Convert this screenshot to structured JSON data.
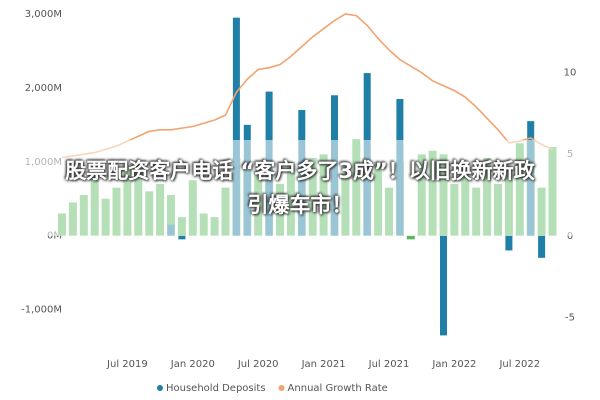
{
  "chart_data": {
    "type": "bar",
    "categories": [
      null,
      null,
      null,
      null,
      null,
      null,
      "Jul 2019",
      null,
      null,
      null,
      null,
      null,
      "Jan 2020",
      null,
      null,
      null,
      null,
      null,
      "Jul 2020",
      null,
      null,
      null,
      null,
      null,
      "Jan 2021",
      null,
      null,
      null,
      null,
      null,
      "Jul 2021",
      null,
      null,
      null,
      null,
      null,
      "Jan 2022",
      null,
      null,
      null,
      null,
      null,
      "Jul 2022",
      null,
      null,
      null
    ],
    "series": [
      {
        "color": "#5cb860",
        "values": [
          300,
          450,
          550,
          800,
          500,
          650,
          900,
          850,
          600,
          700,
          550,
          250,
          750,
          300,
          250,
          650,
          1050,
          900,
          850,
          900,
          700,
          1000,
          950,
          1050,
          1100,
          750,
          850,
          1300,
          1000,
          1000,
          650,
          1000,
          -50,
          1100,
          1150,
          1100,
          700,
          900,
          650,
          1050,
          700,
          900,
          1250,
          1300,
          650,
          1200
        ]
      },
      {
        "name": "Household Deposits",
        "color": "#1f7fa6",
        "values": [
          null,
          null,
          null,
          null,
          null,
          null,
          null,
          null,
          null,
          null,
          150,
          -50,
          null,
          null,
          null,
          null,
          2950,
          1500,
          null,
          1950,
          null,
          null,
          1700,
          null,
          null,
          1900,
          null,
          null,
          2200,
          null,
          null,
          1850,
          null,
          null,
          null,
          -1350,
          null,
          null,
          null,
          null,
          null,
          -200,
          null,
          1550,
          -300,
          null
        ]
      },
      {
        "name": "Annual Growth Rate",
        "type": "line",
        "axis": "y2",
        "color": "#f2a36f",
        "values": [
          4.8,
          4.9,
          5.0,
          5.1,
          5.3,
          5.5,
          5.8,
          6.1,
          6.4,
          6.5,
          6.5,
          6.6,
          6.7,
          6.9,
          7.1,
          7.4,
          8.8,
          9.6,
          10.2,
          10.3,
          10.5,
          11.0,
          11.6,
          12.2,
          12.7,
          13.2,
          13.6,
          13.5,
          12.9,
          12.1,
          11.4,
          10.8,
          10.4,
          10.0,
          9.5,
          9.2,
          8.9,
          8.5,
          7.9,
          7.2,
          6.5,
          5.7,
          5.8,
          6.0,
          5.6,
          5.3
        ]
      }
    ],
    "ylim": [
      -1480,
      3000
    ],
    "yticks": [
      {
        "value": -1000,
        "label": "-1,000M"
      },
      {
        "value": 0,
        "label": "0M"
      },
      {
        "value": 1000,
        "label": "1,000M"
      },
      {
        "value": 2000,
        "label": "2,000M"
      },
      {
        "value": 3000,
        "label": "3,000M"
      }
    ],
    "y2lim": [
      -6.7,
      13.6
    ],
    "y2ticks": [
      -5,
      0,
      5,
      10
    ]
  },
  "banner": {
    "lines": [
      "股票配资客户电话 “客户多了3成”！以旧换新新政",
      "引爆车市！"
    ]
  }
}
